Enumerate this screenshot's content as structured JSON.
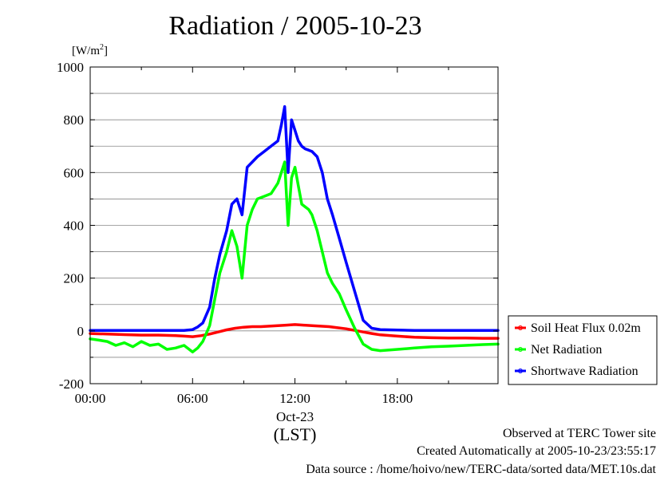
{
  "page": {
    "title": "Radiation / 2005-10-23",
    "unit_label": "[W/m",
    "unit_sup": "2",
    "unit_close": "]",
    "footer": {
      "line1": "Observed at TERC Tower site",
      "line2": "Created Automatically at 2005-10-23/23:55:17",
      "line3": "Data source : /home/hoivo/new/TERC-data/sorted  data/MET.10s.dat"
    }
  },
  "chart_data": {
    "type": "line",
    "title": "Radiation / 2005-10-23",
    "ylabel": "[W/m2]",
    "xlabel": "(LST)",
    "ylim": [
      -200,
      1000
    ],
    "xlim": [
      0,
      23.9
    ],
    "yticks": [
      -200,
      0,
      200,
      400,
      600,
      800,
      1000
    ],
    "ytick_labels": [
      "-200",
      "0",
      "200",
      "400",
      "600",
      "800",
      "1000"
    ],
    "xticks": [
      0,
      6,
      12,
      18
    ],
    "xtick_labels": [
      "00:00",
      "06:00",
      "12:00",
      "18:00"
    ],
    "x_date_label": "Oct-23",
    "x_unit_label": "(LST)",
    "grid": true,
    "legend_position": "right",
    "series": [
      {
        "name": "Soil Heat Flux 0.02m",
        "color": "#ff0000",
        "x": [
          0,
          1,
          2,
          3,
          4,
          5,
          5.5,
          6,
          6.5,
          7,
          7.5,
          8,
          8.5,
          9,
          9.5,
          10,
          10.5,
          11,
          11.5,
          12,
          12.5,
          13,
          13.5,
          14,
          14.5,
          15,
          15.5,
          16,
          16.5,
          17,
          18,
          19,
          20,
          21,
          22,
          23,
          23.9
        ],
        "y": [
          -10,
          -12,
          -14,
          -16,
          -16,
          -18,
          -20,
          -22,
          -18,
          -12,
          -4,
          4,
          10,
          14,
          16,
          16,
          18,
          20,
          22,
          24,
          22,
          20,
          18,
          16,
          12,
          8,
          2,
          -4,
          -10,
          -15,
          -20,
          -24,
          -26,
          -27,
          -27,
          -28,
          -28
        ]
      },
      {
        "name": "Net Radiation",
        "color": "#00ff00",
        "x": [
          0,
          0.5,
          1,
          1.5,
          2,
          2.5,
          3,
          3.5,
          4,
          4.5,
          5,
          5.5,
          6,
          6.3,
          6.6,
          7,
          7.3,
          7.6,
          8,
          8.3,
          8.6,
          8.9,
          9.2,
          9.5,
          9.8,
          10.2,
          10.6,
          11,
          11.2,
          11.4,
          11.6,
          11.8,
          12,
          12.2,
          12.4,
          12.6,
          12.8,
          13,
          13.3,
          13.6,
          13.9,
          14.2,
          14.6,
          15,
          15.5,
          16,
          16.5,
          17,
          18,
          19,
          20,
          21,
          22,
          23,
          23.9
        ],
        "y": [
          -30,
          -35,
          -40,
          -55,
          -45,
          -60,
          -40,
          -55,
          -50,
          -70,
          -65,
          -55,
          -80,
          -65,
          -40,
          20,
          120,
          220,
          300,
          380,
          320,
          200,
          400,
          460,
          500,
          510,
          520,
          560,
          600,
          640,
          400,
          580,
          620,
          550,
          480,
          470,
          460,
          440,
          380,
          300,
          220,
          180,
          140,
          80,
          10,
          -50,
          -70,
          -75,
          -70,
          -65,
          -60,
          -58,
          -55,
          -52,
          -50
        ]
      },
      {
        "name": "Shortwave Radiation",
        "color": "#0000ff",
        "x": [
          0,
          1,
          2,
          3,
          4,
          5,
          5.5,
          6,
          6.3,
          6.6,
          7,
          7.3,
          7.6,
          8,
          8.3,
          8.6,
          8.9,
          9.2,
          9.5,
          9.8,
          10.2,
          10.6,
          11,
          11.2,
          11.4,
          11.6,
          11.8,
          12,
          12.2,
          12.4,
          12.6,
          12.8,
          13,
          13.3,
          13.6,
          13.9,
          14.2,
          14.6,
          15,
          15.5,
          16,
          16.5,
          17,
          18,
          19,
          20,
          21,
          22,
          23,
          23.9
        ],
        "y": [
          2,
          2,
          2,
          2,
          2,
          2,
          2,
          5,
          15,
          30,
          90,
          200,
          290,
          380,
          480,
          500,
          440,
          620,
          640,
          660,
          680,
          700,
          720,
          780,
          850,
          600,
          800,
          760,
          720,
          700,
          690,
          685,
          680,
          660,
          600,
          500,
          440,
          350,
          260,
          150,
          40,
          10,
          5,
          3,
          2,
          2,
          2,
          2,
          2,
          2
        ]
      }
    ]
  }
}
